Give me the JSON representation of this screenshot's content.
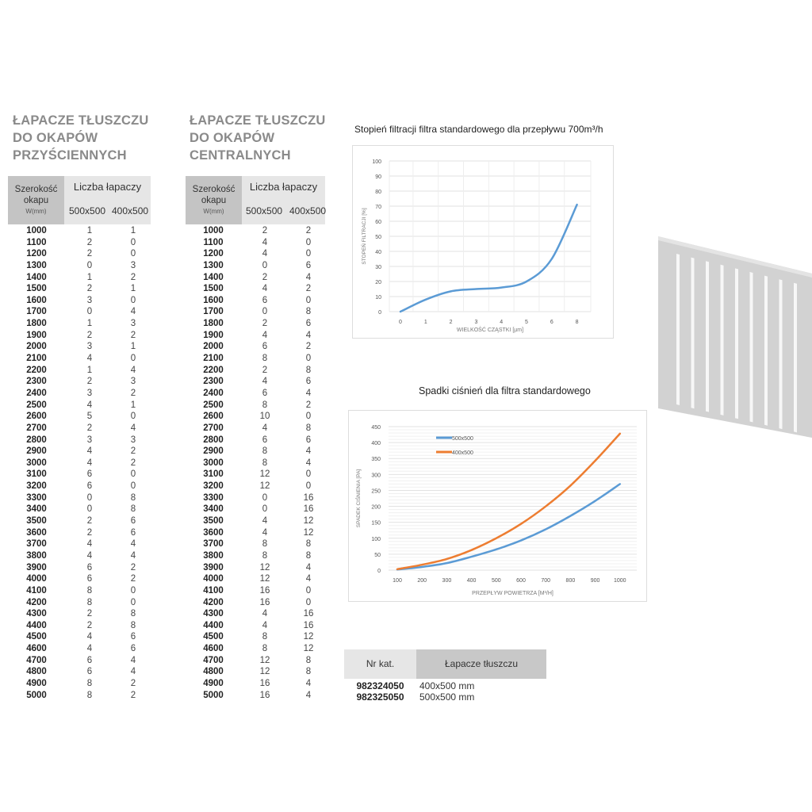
{
  "tables": [
    {
      "title_lines": [
        "ŁAPACZE TŁUSZCZU",
        "DO OKAPÓW",
        "PRZYŚCIENNYCH"
      ],
      "header": {
        "width_label": "Szerokość okapu",
        "width_unit": "W(mm)",
        "group_label": "Liczba łapaczy",
        "col_a": "500x500",
        "col_b": "400x500"
      },
      "rows": [
        [
          "1000",
          "1",
          "1"
        ],
        [
          "1100",
          "2",
          "0"
        ],
        [
          "1200",
          "2",
          "0"
        ],
        [
          "1300",
          "0",
          "3"
        ],
        [
          "1400",
          "1",
          "2"
        ],
        [
          "1500",
          "2",
          "1"
        ],
        [
          "1600",
          "3",
          "0"
        ],
        [
          "1700",
          "0",
          "4"
        ],
        [
          "1800",
          "1",
          "3"
        ],
        [
          "1900",
          "2",
          "2"
        ],
        [
          "2000",
          "3",
          "1"
        ],
        [
          "2100",
          "4",
          "0"
        ],
        [
          "2200",
          "1",
          "4"
        ],
        [
          "2300",
          "2",
          "3"
        ],
        [
          "2400",
          "3",
          "2"
        ],
        [
          "2500",
          "4",
          "1"
        ],
        [
          "2600",
          "5",
          "0"
        ],
        [
          "2700",
          "2",
          "4"
        ],
        [
          "2800",
          "3",
          "3"
        ],
        [
          "2900",
          "4",
          "2"
        ],
        [
          "3000",
          "4",
          "2"
        ],
        [
          "3100",
          "6",
          "0"
        ],
        [
          "3200",
          "6",
          "0"
        ],
        [
          "3300",
          "0",
          "8"
        ],
        [
          "3400",
          "0",
          "8"
        ],
        [
          "3500",
          "2",
          "6"
        ],
        [
          "3600",
          "2",
          "6"
        ],
        [
          "3700",
          "4",
          "4"
        ],
        [
          "3800",
          "4",
          "4"
        ],
        [
          "3900",
          "6",
          "2"
        ],
        [
          "4000",
          "6",
          "2"
        ],
        [
          "4100",
          "8",
          "0"
        ],
        [
          "4200",
          "8",
          "0"
        ],
        [
          "4300",
          "2",
          "8"
        ],
        [
          "4400",
          "2",
          "8"
        ],
        [
          "4500",
          "4",
          "6"
        ],
        [
          "4600",
          "4",
          "6"
        ],
        [
          "4700",
          "6",
          "4"
        ],
        [
          "4800",
          "6",
          "4"
        ],
        [
          "4900",
          "8",
          "2"
        ],
        [
          "5000",
          "8",
          "2"
        ]
      ]
    },
    {
      "title_lines": [
        "ŁAPACZE TŁUSZCZU",
        "DO OKAPÓW",
        "CENTRALNYCH"
      ],
      "header": {
        "width_label": "Szerokość okapu",
        "width_unit": "W(mm)",
        "group_label": "Liczba łapaczy",
        "col_a": "500x500",
        "col_b": "400x500"
      },
      "rows": [
        [
          "1000",
          "2",
          "2"
        ],
        [
          "1100",
          "4",
          "0"
        ],
        [
          "1200",
          "4",
          "0"
        ],
        [
          "1300",
          "0",
          "6"
        ],
        [
          "1400",
          "2",
          "4"
        ],
        [
          "1500",
          "4",
          "2"
        ],
        [
          "1600",
          "6",
          "0"
        ],
        [
          "1700",
          "0",
          "8"
        ],
        [
          "1800",
          "2",
          "6"
        ],
        [
          "1900",
          "4",
          "4"
        ],
        [
          "2000",
          "6",
          "2"
        ],
        [
          "2100",
          "8",
          "0"
        ],
        [
          "2200",
          "2",
          "8"
        ],
        [
          "2300",
          "4",
          "6"
        ],
        [
          "2400",
          "6",
          "4"
        ],
        [
          "2500",
          "8",
          "2"
        ],
        [
          "2600",
          "10",
          "0"
        ],
        [
          "2700",
          "4",
          "8"
        ],
        [
          "2800",
          "6",
          "6"
        ],
        [
          "2900",
          "8",
          "4"
        ],
        [
          "3000",
          "8",
          "4"
        ],
        [
          "3100",
          "12",
          "0"
        ],
        [
          "3200",
          "12",
          "0"
        ],
        [
          "3300",
          "0",
          "16"
        ],
        [
          "3400",
          "0",
          "16"
        ],
        [
          "3500",
          "4",
          "12"
        ],
        [
          "3600",
          "4",
          "12"
        ],
        [
          "3700",
          "8",
          "8"
        ],
        [
          "3800",
          "8",
          "8"
        ],
        [
          "3900",
          "12",
          "4"
        ],
        [
          "4000",
          "12",
          "4"
        ],
        [
          "4100",
          "16",
          "0"
        ],
        [
          "4200",
          "16",
          "0"
        ],
        [
          "4300",
          "4",
          "16"
        ],
        [
          "4400",
          "4",
          "16"
        ],
        [
          "4500",
          "8",
          "12"
        ],
        [
          "4600",
          "8",
          "12"
        ],
        [
          "4700",
          "12",
          "8"
        ],
        [
          "4800",
          "12",
          "8"
        ],
        [
          "4900",
          "16",
          "4"
        ],
        [
          "5000",
          "16",
          "4"
        ]
      ]
    }
  ],
  "chart_data": [
    {
      "type": "line",
      "title": "Stopień filtracji filtra standardowego dla przepływu 700m³/h",
      "xlabel": "WIELKOŚĆ CZĄSTKI [µm]",
      "ylabel": "STOPEŃ FILTRACJI [%]",
      "categories": [
        "0",
        "1",
        "2",
        "3",
        "4",
        "5",
        "6",
        "8"
      ],
      "series": [
        {
          "values": [
            0,
            8,
            13.5,
            15,
            16,
            20,
            35,
            71
          ],
          "color": "#5b9bd5"
        }
      ],
      "ylim": [
        0,
        100
      ],
      "yticks": [
        0,
        10,
        20,
        30,
        40,
        50,
        60,
        70,
        80,
        90,
        100
      ],
      "grid": true
    },
    {
      "type": "line",
      "title": "Spadki ciśnień dla filtra standardowego",
      "xlabel": "PRZEPŁYW POWIETRZA [M³/H]",
      "ylabel": "SPADEK CIŚNIENIA [PA]",
      "categories": [
        "100",
        "200",
        "300",
        "400",
        "500",
        "600",
        "700",
        "800",
        "900",
        "1000"
      ],
      "series": [
        {
          "name": "500x500",
          "values": [
            2,
            10,
            22,
            42,
            65,
            93,
            128,
            170,
            217,
            270
          ],
          "color": "#5b9bd5"
        },
        {
          "name": "400x500",
          "values": [
            3,
            17,
            35,
            63,
            100,
            145,
            200,
            265,
            343,
            428
          ],
          "color": "#ed7d31"
        }
      ],
      "ylim": [
        0,
        450
      ],
      "yticks": [
        0,
        50,
        100,
        150,
        200,
        250,
        300,
        350,
        400,
        450
      ],
      "legend": "top-left",
      "grid": true
    }
  ],
  "catalog": {
    "col_nr": "Nr kat.",
    "col_desc": "Łapacze tłuszczu",
    "rows": [
      {
        "nr": "982324050",
        "desc": "400x500 mm"
      },
      {
        "nr": "982325050",
        "desc": "500x500 mm"
      }
    ]
  }
}
